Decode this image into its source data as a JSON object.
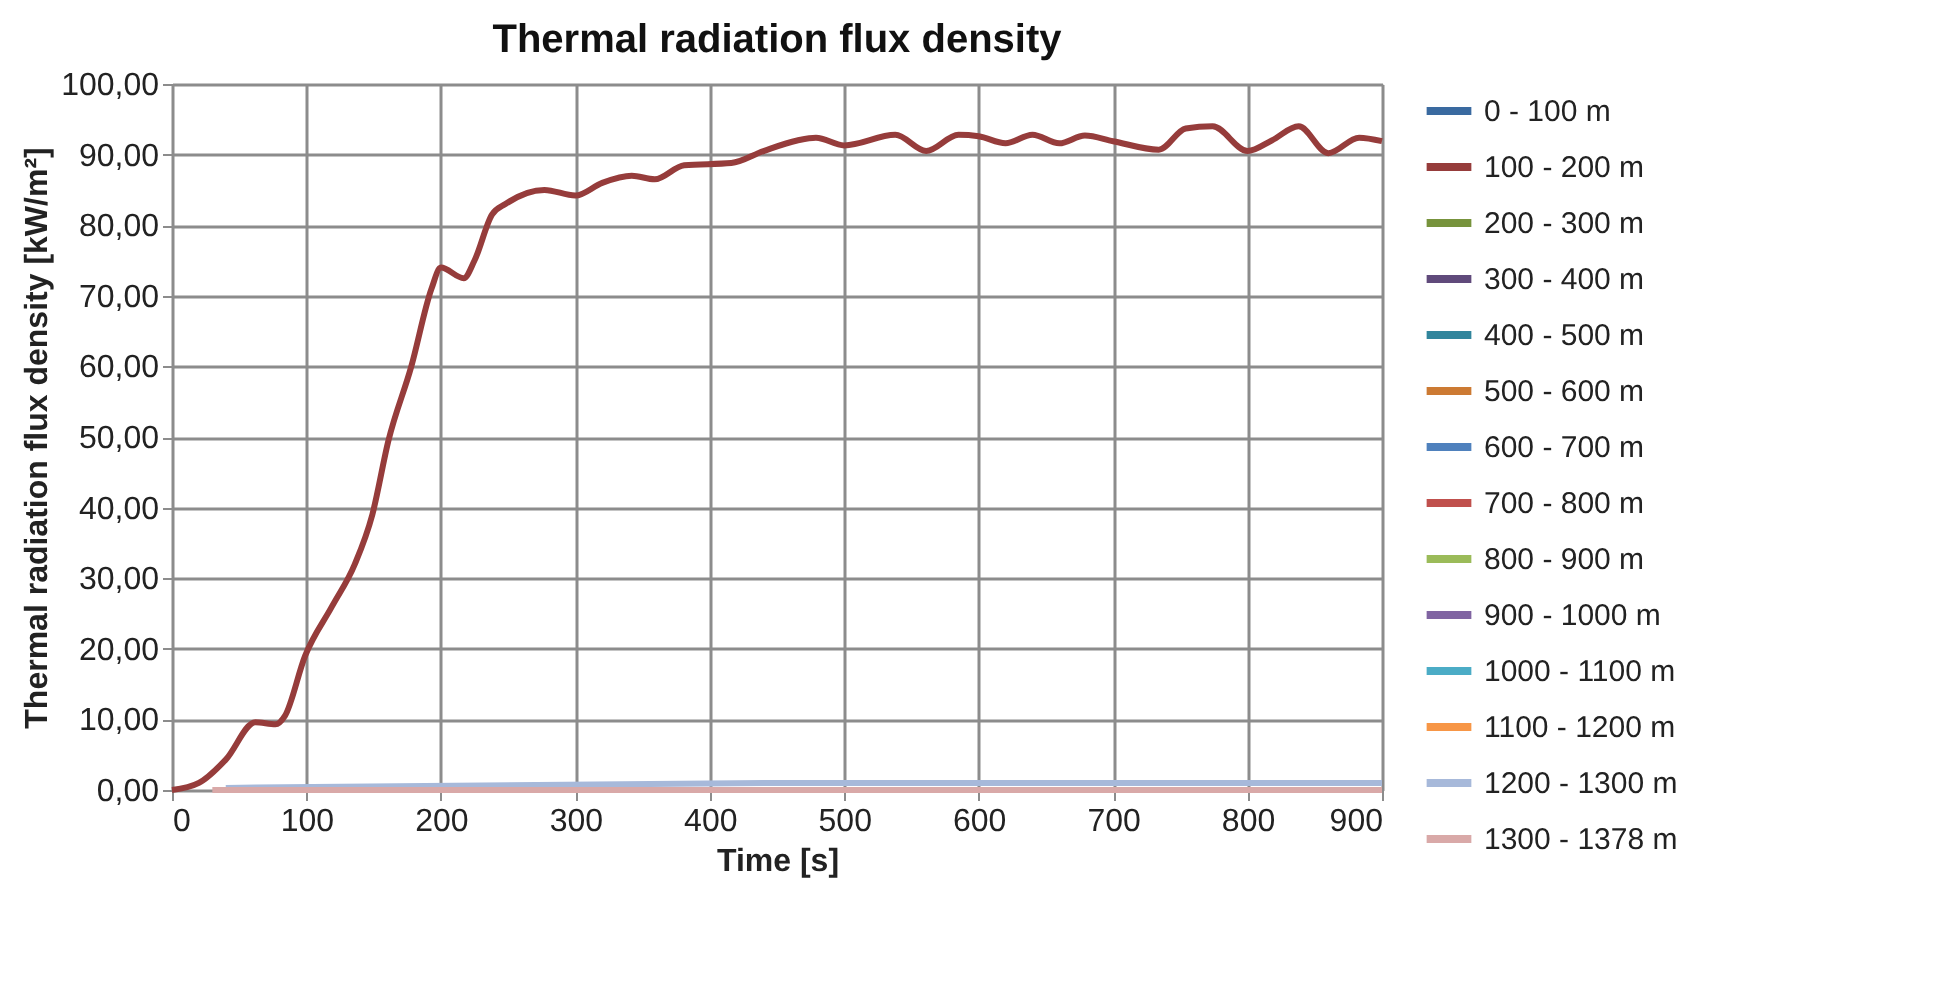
{
  "chart_data": {
    "type": "line",
    "title": "Thermal radiation flux density",
    "xlabel": "Time [s]",
    "ylabel": "Thermal radiation flux density [kW/m²]",
    "xlim": [
      0,
      900
    ],
    "xticks": [
      0,
      100,
      200,
      300,
      400,
      500,
      600,
      700,
      800,
      900
    ],
    "ylim": [
      0,
      100
    ],
    "yticks": [
      {
        "value": 0,
        "label": "0,00"
      },
      {
        "value": 10,
        "label": "10,00"
      },
      {
        "value": 20,
        "label": "20,00"
      },
      {
        "value": 30,
        "label": "30,00"
      },
      {
        "value": 40,
        "label": "40,00"
      },
      {
        "value": 50,
        "label": "50,00"
      },
      {
        "value": 60,
        "label": "60,00"
      },
      {
        "value": 70,
        "label": "70,00"
      },
      {
        "value": 80,
        "label": "80,00"
      },
      {
        "value": 90,
        "label": "90,00"
      },
      {
        "value": 100,
        "label": "100,00"
      }
    ],
    "grid": true,
    "legend": "right",
    "marker": "none",
    "line_style": "solid",
    "series": [
      {
        "name": "0 - 100 m",
        "color": "#3a6aa0"
      },
      {
        "name": "100 - 200 m",
        "color": "#963c3b",
        "x": [
          0,
          20,
          40,
          62,
          77,
          84,
          99,
          119,
          136,
          149,
          161,
          178,
          193,
          200,
          217,
          225,
          238,
          248,
          277,
          300,
          320,
          342,
          359,
          381,
          416,
          440,
          465,
          479,
          500,
          538,
          561,
          585,
          600,
          620,
          640,
          660,
          679,
          700,
          734,
          754,
          774,
          800,
          818,
          838,
          860,
          883,
          900
        ],
        "values": [
          0,
          1,
          4.3,
          9.6,
          9.3,
          10.5,
          19,
          26,
          32,
          39,
          49.5,
          60,
          71,
          74,
          72.5,
          75,
          81.5,
          83,
          85,
          84.2,
          86,
          87,
          86.5,
          88.5,
          88.8,
          90.5,
          92,
          92.4,
          91.3,
          92.8,
          90.5,
          92.8,
          92.6,
          91.6,
          92.8,
          91.6,
          92.7,
          91.9,
          90.7,
          93.7,
          94,
          90.5,
          92,
          94,
          90.2,
          92.4,
          91.9
        ]
      },
      {
        "name": "200 - 300 m",
        "color": "#77933c"
      },
      {
        "name": "300 - 400 m",
        "color": "#604a7b"
      },
      {
        "name": "400 - 500 m",
        "color": "#31859c"
      },
      {
        "name": "500 - 600 m",
        "color": "#cc7a33"
      },
      {
        "name": "600 - 700 m",
        "color": "#4f81bd"
      },
      {
        "name": "700 - 800 m",
        "color": "#c0504d"
      },
      {
        "name": "800 - 900 m",
        "color": "#9bbb59"
      },
      {
        "name": "900 - 1000 m",
        "color": "#8064a2"
      },
      {
        "name": "1000 - 1100 m",
        "color": "#4bacc6"
      },
      {
        "name": "1100 - 1200 m",
        "color": "#f79646"
      },
      {
        "name": "1200 - 1300 m",
        "color": "#a7b9da",
        "x": [
          40,
          450,
          900
        ],
        "values": [
          0.3,
          1,
          1
        ]
      },
      {
        "name": "1300 - 1378 m",
        "color": "#d9a9a8",
        "x": [
          30,
          450,
          900
        ],
        "values": [
          0,
          0,
          0
        ]
      }
    ]
  }
}
